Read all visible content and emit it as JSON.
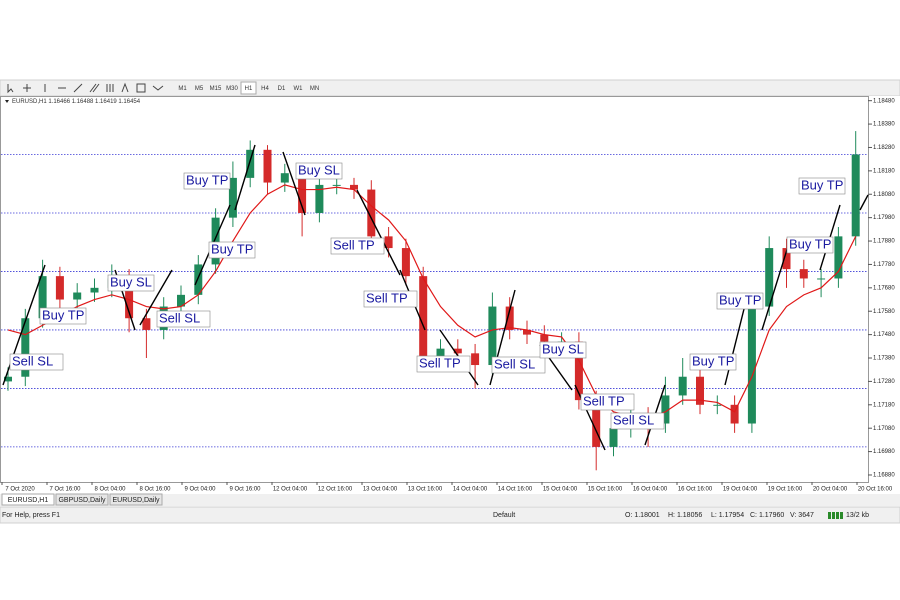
{
  "toolbar": {
    "periods": [
      "M1",
      "M5",
      "M15",
      "M30",
      "H1",
      "H4",
      "D1",
      "W1",
      "MN"
    ]
  },
  "chart_data": {
    "type": "candlestick",
    "info": "EURUSD,H1  1.16466 1.16488 1.16419 1.16454",
    "up_color": "#1f8a5b",
    "down_color": "#d42a2a",
    "ma_color": "#e01818",
    "level_color": "#3a3ad6",
    "open": [
      1.1728,
      1.173,
      1.1755,
      1.1773,
      1.1763,
      1.1766,
      1.1768,
      1.1772,
      1.1755,
      1.175,
      1.176,
      1.1765,
      1.1778,
      1.1798,
      1.1815,
      1.1827,
      1.1813,
      1.1817,
      1.18,
      1.1812,
      1.1812,
      1.181,
      1.179,
      1.1785,
      1.1773,
      1.1738,
      1.1742,
      1.174,
      1.1735,
      1.176,
      1.175,
      1.1748,
      1.1745,
      1.1745,
      1.172,
      1.17,
      1.1708,
      1.1713,
      1.171,
      1.1722,
      1.173,
      1.1718,
      1.1718,
      1.171,
      1.176,
      1.1785,
      1.1776,
      1.1772,
      1.1772,
      1.179
    ],
    "high": [
      1.1734,
      1.1759,
      1.178,
      1.1777,
      1.177,
      1.1772,
      1.1778,
      1.1776,
      1.1759,
      1.1764,
      1.1769,
      1.1782,
      1.1802,
      1.1822,
      1.1831,
      1.1829,
      1.1821,
      1.1821,
      1.1816,
      1.1816,
      1.1815,
      1.1814,
      1.1794,
      1.1789,
      1.1777,
      1.1746,
      1.1746,
      1.1744,
      1.1766,
      1.1764,
      1.1754,
      1.1752,
      1.1749,
      1.1749,
      1.1724,
      1.1712,
      1.1717,
      1.1717,
      1.173,
      1.1738,
      1.1734,
      1.1722,
      1.1722,
      1.1764,
      1.179,
      1.1789,
      1.178,
      1.1776,
      1.1794,
      1.1835
    ],
    "low": [
      1.1724,
      1.1726,
      1.1751,
      1.1757,
      1.1759,
      1.1762,
      1.1764,
      1.1749,
      1.1738,
      1.1746,
      1.1756,
      1.1761,
      1.1774,
      1.1794,
      1.1811,
      1.1808,
      1.1809,
      1.179,
      1.1796,
      1.1808,
      1.1806,
      1.1786,
      1.1781,
      1.1769,
      1.1734,
      1.1734,
      1.1736,
      1.1725,
      1.1731,
      1.1746,
      1.1744,
      1.1741,
      1.1741,
      1.1716,
      1.169,
      1.1696,
      1.1704,
      1.17,
      1.1706,
      1.1718,
      1.1714,
      1.1714,
      1.1706,
      1.1706,
      1.1756,
      1.1768,
      1.1768,
      1.1764,
      1.1768,
      1.1786
    ],
    "close": [
      1.173,
      1.1755,
      1.1773,
      1.1763,
      1.1766,
      1.1768,
      1.1772,
      1.1755,
      1.175,
      1.176,
      1.1765,
      1.1778,
      1.1798,
      1.1815,
      1.1827,
      1.1813,
      1.1817,
      1.18,
      1.1812,
      1.1812,
      1.181,
      1.179,
      1.1785,
      1.1773,
      1.1738,
      1.1742,
      1.174,
      1.1735,
      1.176,
      1.175,
      1.1748,
      1.1745,
      1.1745,
      1.172,
      1.17,
      1.1708,
      1.1713,
      1.171,
      1.1722,
      1.173,
      1.1718,
      1.1718,
      1.171,
      1.176,
      1.1785,
      1.1776,
      1.1772,
      1.1772,
      1.179,
      1.1825
    ],
    "ma": [
      1.175,
      1.1748,
      1.1752,
      1.1756,
      1.176,
      1.1763,
      1.1765,
      1.1763,
      1.176,
      1.1759,
      1.176,
      1.1765,
      1.1775,
      1.1788,
      1.18,
      1.1808,
      1.1812,
      1.181,
      1.181,
      1.1811,
      1.181,
      1.1803,
      1.1797,
      1.1788,
      1.1772,
      1.176,
      1.1752,
      1.1747,
      1.175,
      1.1751,
      1.175,
      1.1748,
      1.1747,
      1.1737,
      1.1722,
      1.1715,
      1.1713,
      1.1712,
      1.1715,
      1.172,
      1.172,
      1.1719,
      1.1715,
      1.173,
      1.175,
      1.176,
      1.1765,
      1.1768,
      1.1775,
      1.179
    ],
    "levels": [
      1.1825,
      1.18,
      1.1775,
      1.175,
      1.1725,
      1.17
    ],
    "ylim": [
      1.1685,
      1.185
    ],
    "yticks": [
      {
        "value": 1.1848,
        "label": "1.18480"
      },
      {
        "value": 1.1838,
        "label": "1.18380"
      },
      {
        "value": 1.1828,
        "label": "1.18280"
      },
      {
        "value": 1.1818,
        "label": "1.18180"
      },
      {
        "value": 1.1808,
        "label": "1.18080"
      },
      {
        "value": 1.1798,
        "label": "1.17980"
      },
      {
        "value": 1.1788,
        "label": "1.17880"
      },
      {
        "value": 1.1778,
        "label": "1.17780"
      },
      {
        "value": 1.1768,
        "label": "1.17680"
      },
      {
        "value": 1.1758,
        "label": "1.17580"
      },
      {
        "value": 1.1748,
        "label": "1.17480"
      },
      {
        "value": 1.1738,
        "label": "1.17380"
      },
      {
        "value": 1.1728,
        "label": "1.17280"
      },
      {
        "value": 1.1718,
        "label": "1.17180"
      },
      {
        "value": 1.1708,
        "label": "1.17080"
      },
      {
        "value": 1.1698,
        "label": "1.16980"
      },
      {
        "value": 1.1688,
        "label": "1.16880"
      }
    ],
    "time_labels": [
      "7 Oct 2020",
      "7 Oct 16:00",
      "8 Oct 04:00",
      "8 Oct 16:00",
      "9 Oct 04:00",
      "9 Oct 16:00",
      "12 Oct 04:00",
      "12 Oct 16:00",
      "13 Oct 04:00",
      "13 Oct 16:00",
      "14 Oct 04:00",
      "14 Oct 16:00",
      "15 Oct 04:00",
      "15 Oct 16:00",
      "16 Oct 04:00",
      "16 Oct 16:00",
      "19 Oct 04:00",
      "19 Oct 16:00",
      "20 Oct 04:00",
      "20 Oct 16:00"
    ],
    "annotations": [
      "Sell SL",
      "Buy TP",
      "Buy SL",
      "Sell SL",
      "Buy TP",
      "Buy TP",
      "Buy SL",
      "Sell TP",
      "Sell TP",
      "Sell TP",
      "Sell SL",
      "Buy SL",
      "Sell TP",
      "Sell SL",
      "Buy TP",
      "Buy TP",
      "Buy TP",
      "Buy TP"
    ]
  },
  "tabs": [
    "EURUSD,H1",
    "GBPUSD,Daily",
    "EURUSD,Daily"
  ],
  "status": {
    "help": "For Help, press F1",
    "profile": "Default",
    "open": "O: 1.18001",
    "high": "H: 1.18056",
    "low": "L: 1.17954",
    "close": "C: 1.17960",
    "volume": "V: 3647",
    "traffic": "13/2 kb"
  }
}
